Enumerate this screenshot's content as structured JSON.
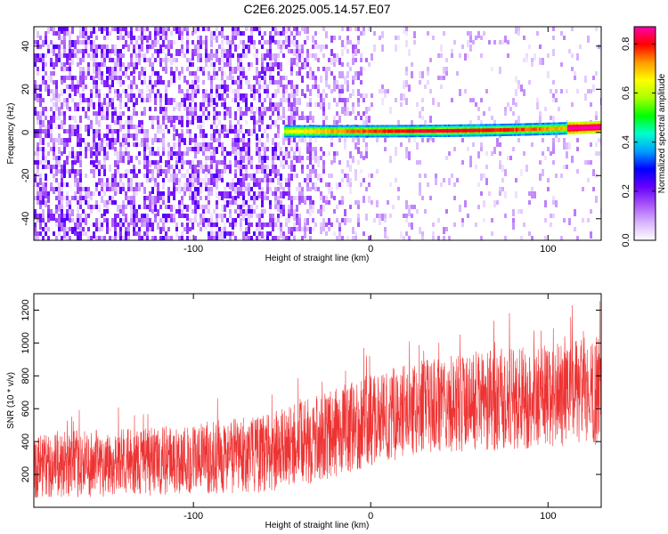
{
  "title": "C2E6.2025.005.14.57.E07",
  "chart_data": [
    {
      "type": "heatmap",
      "xlabel": "Height of straight line (km)",
      "ylabel": "Frequency (Hz)",
      "xlim": [
        -190,
        130
      ],
      "ylim": [
        -50,
        49
      ],
      "xticks": [
        -100,
        0,
        100
      ],
      "yticks": [
        -40,
        -20,
        0,
        20,
        40
      ],
      "colorbar": {
        "label": "Normalized spectral amplitude",
        "range": [
          0,
          0.87
        ],
        "ticks": [
          "0.0",
          "0.2",
          "0.4",
          "0.6",
          "0.8"
        ],
        "tick_values": [
          0,
          0.2,
          0.4,
          0.6,
          0.8
        ],
        "colors": [
          "#ffffff",
          "#d8b4ff",
          "#a855f7",
          "#6600ff",
          "#0000ff",
          "#00a0ff",
          "#00ffcc",
          "#00ff00",
          "#aaff00",
          "#ffff00",
          "#ff9900",
          "#ff0000",
          "#ff00aa"
        ]
      },
      "signal_band": {
        "x_start": -49,
        "x_end": 130,
        "freq_center": 0.5,
        "freq_end": 2.5,
        "peak_amplitude": 0.8
      }
    },
    {
      "type": "line",
      "xlabel": "Height of straight line (km)",
      "ylabel": "SNR (10 * v/v)",
      "xlim": [
        -190,
        130
      ],
      "ylim": [
        0,
        1300
      ],
      "xticks": [
        -100,
        0,
        100
      ],
      "yticks": [
        200,
        400,
        600,
        800,
        1000,
        1200
      ],
      "series_color": "#ee3333",
      "trend": [
        {
          "x": -190,
          "low": 50,
          "high": 460
        },
        {
          "x": -130,
          "low": 70,
          "high": 480
        },
        {
          "x": -60,
          "low": 90,
          "high": 560
        },
        {
          "x": -30,
          "low": 150,
          "high": 680
        },
        {
          "x": 0,
          "low": 250,
          "high": 820
        },
        {
          "x": 30,
          "low": 330,
          "high": 900
        },
        {
          "x": 60,
          "low": 340,
          "high": 950
        },
        {
          "x": 100,
          "low": 360,
          "high": 1000
        },
        {
          "x": 130,
          "low": 380,
          "high": 1050
        }
      ]
    }
  ]
}
